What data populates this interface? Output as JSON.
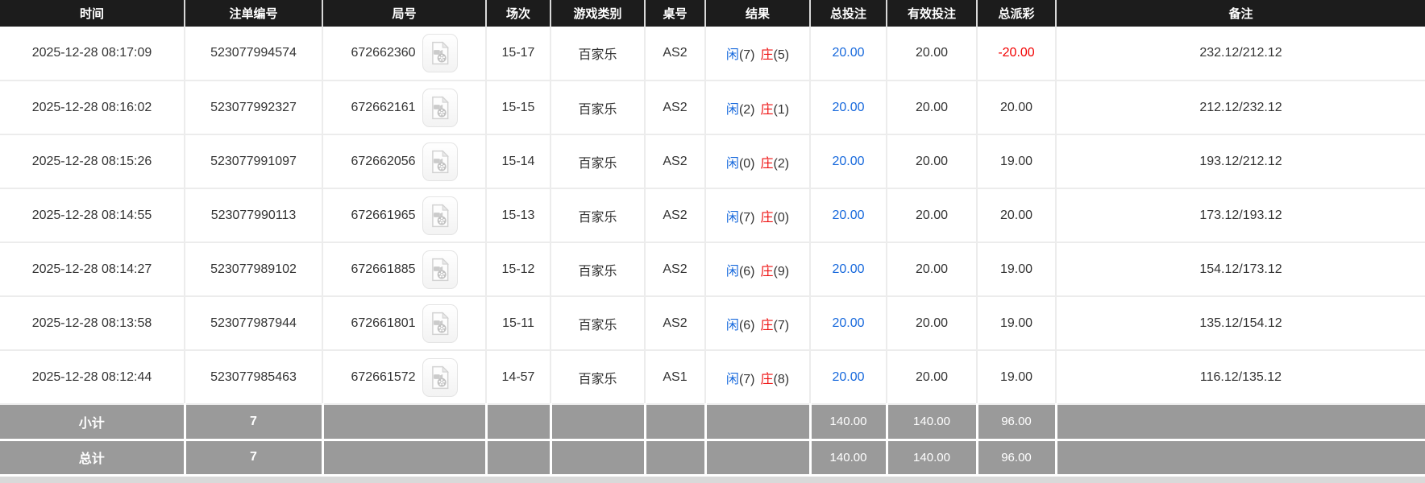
{
  "table": {
    "columns": [
      {
        "key": "time",
        "label": "时间"
      },
      {
        "key": "bet_no",
        "label": "注单编号"
      },
      {
        "key": "round_no",
        "label": "局号"
      },
      {
        "key": "session",
        "label": "场次"
      },
      {
        "key": "game_type",
        "label": "游戏类别"
      },
      {
        "key": "table_no",
        "label": "桌号"
      },
      {
        "key": "result",
        "label": "结果"
      },
      {
        "key": "total_bet",
        "label": "总投注"
      },
      {
        "key": "valid_bet",
        "label": "有效投注"
      },
      {
        "key": "total_payout",
        "label": "总派彩"
      },
      {
        "key": "remark",
        "label": "备注"
      }
    ],
    "rows": [
      {
        "time": "2025-12-28 08:17:09",
        "bet_no": "523077994574",
        "round_no": "672662360",
        "session": "15-17",
        "game_type": "百家乐",
        "table_no": "AS2",
        "result": {
          "player_label": "闲",
          "player_score": "(7)",
          "banker_label": "庄",
          "banker_score": "(5)"
        },
        "total_bet": "20.00",
        "valid_bet": "20.00",
        "total_payout": "-20.00",
        "payout_negative": true,
        "remark": "232.12/212.12"
      },
      {
        "time": "2025-12-28 08:16:02",
        "bet_no": "523077992327",
        "round_no": "672662161",
        "session": "15-15",
        "game_type": "百家乐",
        "table_no": "AS2",
        "result": {
          "player_label": "闲",
          "player_score": "(2)",
          "banker_label": "庄",
          "banker_score": "(1)"
        },
        "total_bet": "20.00",
        "valid_bet": "20.00",
        "total_payout": "20.00",
        "payout_negative": false,
        "remark": "212.12/232.12"
      },
      {
        "time": "2025-12-28 08:15:26",
        "bet_no": "523077991097",
        "round_no": "672662056",
        "session": "15-14",
        "game_type": "百家乐",
        "table_no": "AS2",
        "result": {
          "player_label": "闲",
          "player_score": "(0)",
          "banker_label": "庄",
          "banker_score": "(2)"
        },
        "total_bet": "20.00",
        "valid_bet": "20.00",
        "total_payout": "19.00",
        "payout_negative": false,
        "remark": "193.12/212.12"
      },
      {
        "time": "2025-12-28 08:14:55",
        "bet_no": "523077990113",
        "round_no": "672661965",
        "session": "15-13",
        "game_type": "百家乐",
        "table_no": "AS2",
        "result": {
          "player_label": "闲",
          "player_score": "(7)",
          "banker_label": "庄",
          "banker_score": "(0)"
        },
        "total_bet": "20.00",
        "valid_bet": "20.00",
        "total_payout": "20.00",
        "payout_negative": false,
        "remark": "173.12/193.12"
      },
      {
        "time": "2025-12-28 08:14:27",
        "bet_no": "523077989102",
        "round_no": "672661885",
        "session": "15-12",
        "game_type": "百家乐",
        "table_no": "AS2",
        "result": {
          "player_label": "闲",
          "player_score": "(6)",
          "banker_label": "庄",
          "banker_score": "(9)"
        },
        "total_bet": "20.00",
        "valid_bet": "20.00",
        "total_payout": "19.00",
        "payout_negative": false,
        "remark": "154.12/173.12"
      },
      {
        "time": "2025-12-28 08:13:58",
        "bet_no": "523077987944",
        "round_no": "672661801",
        "session": "15-11",
        "game_type": "百家乐",
        "table_no": "AS2",
        "result": {
          "player_label": "闲",
          "player_score": "(6)",
          "banker_label": "庄",
          "banker_score": "(7)"
        },
        "total_bet": "20.00",
        "valid_bet": "20.00",
        "total_payout": "19.00",
        "payout_negative": false,
        "remark": "135.12/154.12"
      },
      {
        "time": "2025-12-28 08:12:44",
        "bet_no": "523077985463",
        "round_no": "672661572",
        "session": "14-57",
        "game_type": "百家乐",
        "table_no": "AS1",
        "result": {
          "player_label": "闲",
          "player_score": "(7)",
          "banker_label": "庄",
          "banker_score": "(8)"
        },
        "total_bet": "20.00",
        "valid_bet": "20.00",
        "total_payout": "19.00",
        "payout_negative": false,
        "remark": "116.12/135.12"
      }
    ],
    "subtotal": {
      "label": "小计",
      "count": "7",
      "total_bet": "140.00",
      "valid_bet": "140.00",
      "total_payout": "96.00"
    },
    "grand_total": {
      "label": "总计",
      "count": "7",
      "total_bet": "140.00",
      "valid_bet": "140.00",
      "total_payout": "96.00"
    }
  },
  "icons": {
    "round_video": "video-file-icon"
  },
  "colors": {
    "header_bg": "#1c1c1c",
    "header_text": "#ffffff",
    "row_text": "#333333",
    "border": "#ececec",
    "player_blue": "#1668dc",
    "banker_red": "#ee1111",
    "amount_blue": "#1668dc",
    "negative_red": "#f20000",
    "summary_bg": "#9a9a9a",
    "summary_text": "#ffffff"
  }
}
